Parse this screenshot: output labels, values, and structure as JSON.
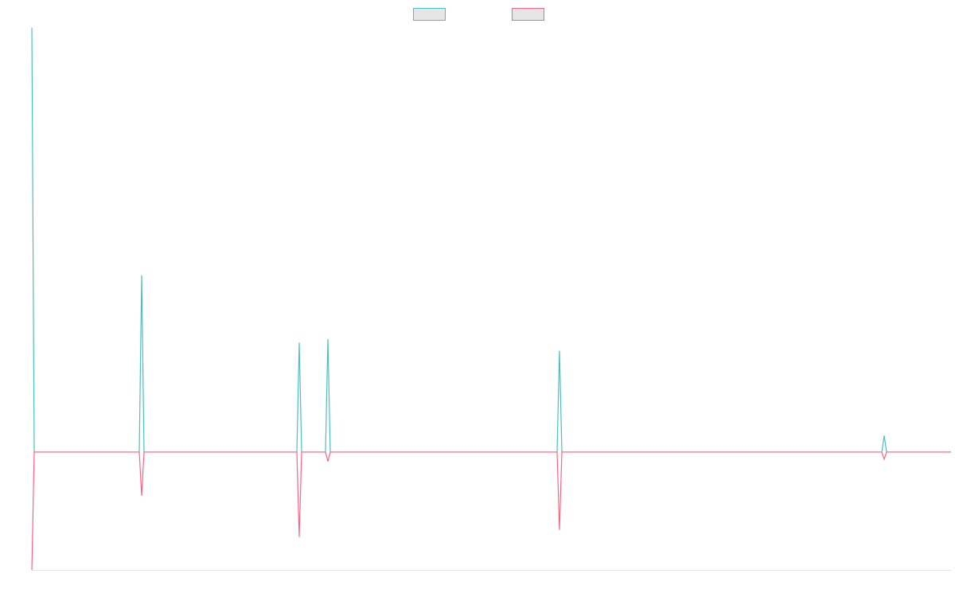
{
  "chart_data": {
    "type": "line",
    "x": [
      0,
      1,
      45,
      46,
      47,
      111,
      112,
      113,
      123,
      124,
      125,
      220,
      221,
      222,
      356,
      357,
      358,
      385
    ],
    "series": [
      {
        "color": "#4bc0c0",
        "values": [
          36,
          0,
          0,
          15,
          0,
          0,
          9.3,
          0,
          0,
          9.6,
          0,
          0,
          8.6,
          0,
          0,
          1.4,
          0,
          0
        ]
      },
      {
        "color": "#ff6384",
        "values": [
          -10,
          0,
          0,
          -3.7,
          0,
          0,
          -7.2,
          0,
          0,
          -0.8,
          0,
          0,
          -6.6,
          0,
          0,
          -0.6,
          0,
          0
        ]
      }
    ],
    "xlim": [
      0,
      385
    ],
    "ylim": [
      -10,
      36
    ],
    "legend": "top"
  }
}
